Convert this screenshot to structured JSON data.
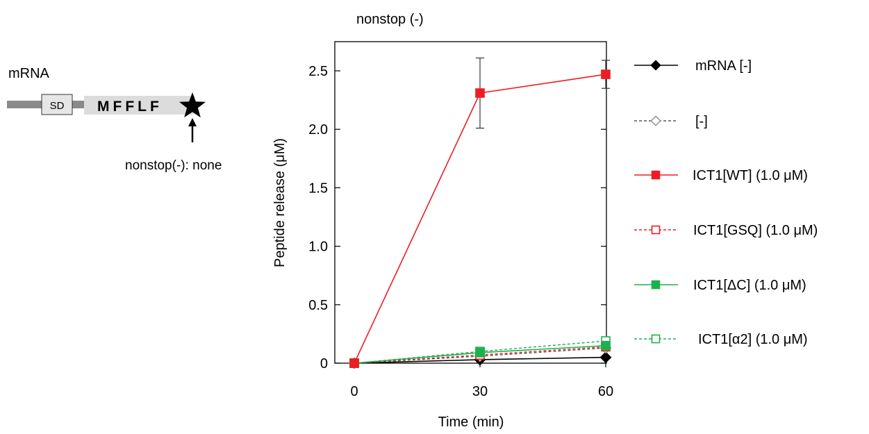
{
  "schematic": {
    "label": "mRNA",
    "sd_label": "SD",
    "sequence": "MFFLF",
    "annotation": "nonstop(-): none"
  },
  "chart_data": {
    "type": "line",
    "title": "nonstop (-)",
    "xlabel": "Time (min)",
    "ylabel": "Peptide release  (μM)",
    "x": [
      0,
      30,
      60
    ],
    "xticks": [
      "0",
      "30",
      "60"
    ],
    "yticks": [
      "0",
      "0.5",
      "1.0",
      "1.5",
      "2.0",
      "2.5"
    ],
    "xlim": [
      0,
      60
    ],
    "ylim": [
      0,
      2.7
    ],
    "legend_position": "right",
    "series": [
      {
        "name": "mRNA [-]",
        "values": [
          0,
          0.03,
          0.05
        ],
        "color": "#000000",
        "dash": false,
        "marker": "diamond",
        "filled": true
      },
      {
        "name": "[-]",
        "values": [
          0,
          0.06,
          0.13
        ],
        "color": "#555555",
        "dash": true,
        "marker": "diamond",
        "filled": false
      },
      {
        "name": "ICT1[WT] (1.0 μM)",
        "values": [
          0,
          2.31,
          2.47
        ],
        "color": "#ee1c24",
        "dash": false,
        "marker": "square",
        "filled": true,
        "errors": [
          0,
          0.3,
          0.12
        ]
      },
      {
        "name": "ICT1[GSQ] (1.0 μM)",
        "values": [
          0,
          0.07,
          0.14
        ],
        "color": "#ee1c24",
        "dash": true,
        "marker": "square",
        "filled": false
      },
      {
        "name": "ICT1[ΔC] (1.0 μM)",
        "values": [
          0,
          0.09,
          0.15
        ],
        "color": "#1cb14c",
        "dash": false,
        "marker": "square",
        "filled": true
      },
      {
        "name": "ICT1[α2] (1.0 μM)",
        "values": [
          0,
          0.1,
          0.19
        ],
        "color": "#1cb14c",
        "dash": true,
        "marker": "square",
        "filled": false
      }
    ]
  }
}
